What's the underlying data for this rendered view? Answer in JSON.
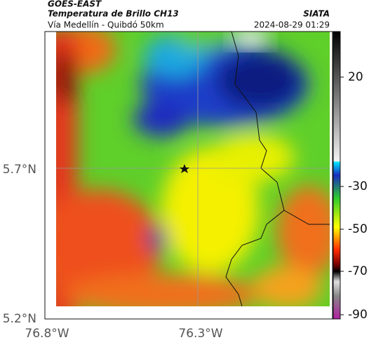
{
  "header": {
    "satellite": "GOES-EAST",
    "product": "Temperatura de Brillo CH13",
    "route": "Vía Medellín - Quibdó 50km",
    "source": "SIATA",
    "timestamp": "2024-08-29 01:29"
  },
  "map": {
    "lat_labels": [
      "5.7°N",
      "5.2°N"
    ],
    "lon_labels": [
      "76.8°W",
      "76.3°W"
    ]
  },
  "colorbar": {
    "ticks": [
      20,
      -30,
      -50,
      -70,
      -90
    ]
  }
}
